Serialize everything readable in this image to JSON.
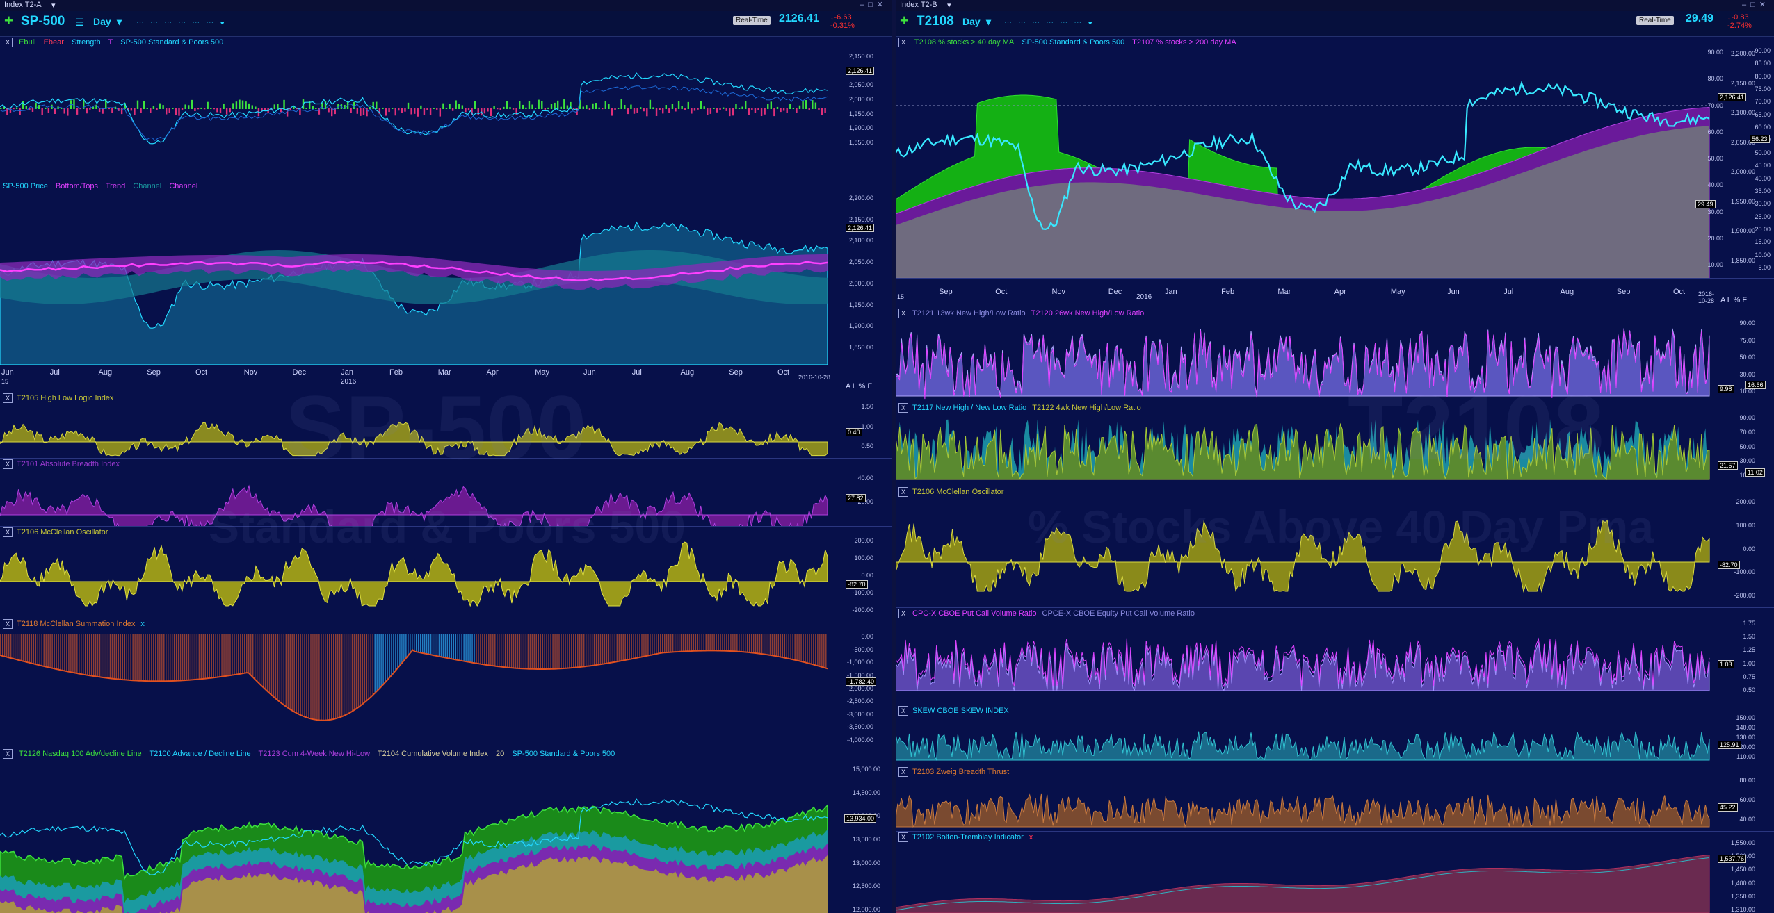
{
  "left": {
    "window_title": "Index T2-A",
    "symbol": "SP-500",
    "period": "Day",
    "realtime_label": "Real-Time",
    "price": "2126.41",
    "change": "-6.63",
    "change_pct": "-0.31%",
    "watermark_title": "SP-500",
    "watermark_sub": "Standard & Poors 500",
    "pane1": {
      "items": [
        "Ebull",
        "Ebear",
        "Strength",
        "T",
        "SP-500 Standard & Poors 500"
      ],
      "ticks": [
        "2,150.00",
        "2,100.00",
        "2,050.00",
        "2,000.00",
        "1,950.00",
        "1,900.00",
        "1,850.00"
      ],
      "last": "2,126.41"
    },
    "pane2": {
      "items": [
        "SP-500 Price",
        "Bottom/Tops",
        "Trend",
        "Channel",
        "Channel"
      ],
      "ticks": [
        "2,200.00",
        "2,150.00",
        "2,100.00",
        "2,050.00",
        "2,000.00",
        "1,950.00",
        "1,900.00",
        "1,850.00"
      ],
      "last": "2,126.41"
    },
    "dates": [
      "Jun",
      "Jul",
      "Aug",
      "Sep",
      "Oct",
      "Nov",
      "Dec",
      "Jan",
      "Feb",
      "Mar",
      "Apr",
      "May",
      "Jun",
      "Jul",
      "Aug",
      "Sep",
      "Oct"
    ],
    "date_year_start": "15",
    "date_year_mid": "2016",
    "date_end": "2016-10-28",
    "scale_controls": "A L % F",
    "pane3": {
      "items": [
        "T2105 High Low Logic Index"
      ],
      "ticks": [
        "1.50",
        "1.00",
        "0.50"
      ],
      "last": "0.40"
    },
    "pane4": {
      "items": [
        "T2101 Absolute Breadth Index"
      ],
      "ticks": [
        "40.00",
        "20.00"
      ],
      "last": "27.82"
    },
    "pane5": {
      "items": [
        "T2106 McClellan Oscillator"
      ],
      "ticks": [
        "200.00",
        "100.00",
        "0.00",
        "-100.00",
        "-200.00"
      ],
      "last": "-82.70"
    },
    "pane6": {
      "items": [
        "T2118 McClellan Summation Index",
        "x"
      ],
      "ticks": [
        "0.00",
        "-500.00",
        "-1,000.00",
        "-1,500.00",
        "-2,000.00",
        "-2,500.00",
        "-3,000.00",
        "-3,500.00",
        "-4,000.00"
      ],
      "last": "-1,782.40"
    },
    "pane7": {
      "items": [
        "T2126 Nasdaq 100 Adv/decline Line",
        "T2100 Advance / Decline Line",
        "T2123 Cum 4-Week New Hi-Low",
        "T2104 Cumulative Volume Index",
        "20",
        "SP-500 Standard & Poors 500"
      ],
      "ticks": [
        "15,000.00",
        "14,500.00",
        "14,000.00",
        "13,500.00",
        "13,000.00",
        "12,500.00",
        "12,000.00"
      ],
      "last": "13,934.00"
    }
  },
  "right": {
    "window_title": "Index T2-B",
    "symbol": "T2108",
    "period": "Day",
    "realtime_label": "Real-Time",
    "price": "29.49",
    "change": "-0.83",
    "change_pct": "-2.74%",
    "watermark_title": "T2108",
    "watermark_sub": "% Stocks Above 40 Day Pma",
    "pane1": {
      "items": [
        "T2108 % stocks > 40 day MA",
        "SP-500 Standard & Poors 500",
        "T2107 % stocks > 200 day MA"
      ],
      "ticks_a": [
        "90.00",
        "80.00",
        "70.00",
        "60.00",
        "50.00",
        "40.00",
        "30.00",
        "20.00",
        "10.00"
      ],
      "ticks_b": [
        "2,200.00",
        "2,150.00",
        "2,100.00",
        "2,050.00",
        "2,000.00",
        "1,950.00",
        "1,900.00",
        "1,850.00"
      ],
      "ticks_c": [
        "90.00",
        "85.00",
        "80.00",
        "75.00",
        "70.00",
        "65.00",
        "60.00",
        "55.00",
        "50.00",
        "45.00",
        "40.00",
        "35.00",
        "30.00",
        "25.00",
        "20.00",
        "15.00",
        "10.00",
        "5.00"
      ],
      "last_a": "29.49",
      "last_b": "2,126.41",
      "last_c": "56.23"
    },
    "dates": [
      "Sep",
      "Oct",
      "Nov",
      "Dec",
      "Jan",
      "Feb",
      "Mar",
      "Apr",
      "May",
      "Jun",
      "Jul",
      "Aug",
      "Sep",
      "Oct"
    ],
    "date_year_start": "15",
    "date_year_mid": "2016",
    "date_end": "2016-10-28",
    "scale_controls": "A L % F",
    "pane2": {
      "items": [
        "T2121 13wk New High/Low Ratio",
        "T2120 26wk New High/Low Ratio"
      ],
      "ticks": [
        "90.00",
        "75.00",
        "50.00",
        "30.00",
        "10.00"
      ],
      "last": "9.98",
      "last2": "16.66"
    },
    "pane3": {
      "items": [
        "T2117 New High / New Low Ratio",
        "T2122 4wk New High/Low Ratio"
      ],
      "ticks": [
        "90.00",
        "70.00",
        "50.00",
        "30.00",
        "10.00"
      ],
      "last": "21.57",
      "last2": "11.02"
    },
    "pane4": {
      "items": [
        "T2106 McClellan Oscillator"
      ],
      "ticks": [
        "200.00",
        "100.00",
        "0.00",
        "-100.00",
        "-200.00"
      ],
      "last": "-82.70"
    },
    "pane5": {
      "items": [
        "CPC-X CBOE Put Call Volume Ratio",
        "CPCE-X CBOE Equity Put Call Volume Ratio"
      ],
      "ticks": [
        "1.75",
        "1.50",
        "1.25",
        "1.00",
        "0.75",
        "0.50"
      ],
      "last": "1.03"
    },
    "pane6": {
      "items": [
        "SKEW CBOE SKEW INDEX"
      ],
      "ticks": [
        "150.00",
        "140.00",
        "130.00",
        "120.00",
        "110.00"
      ],
      "last": "125.91"
    },
    "pane7": {
      "items": [
        "T2103 Zweig Breadth Thrust"
      ],
      "ticks": [
        "80.00",
        "60.00",
        "40.00"
      ],
      "last": "45.22"
    },
    "pane8": {
      "items": [
        "T2102 Bolton-Tremblay Indicator",
        "x"
      ],
      "ticks": [
        "1,550.00",
        "1,500.00",
        "1,450.00",
        "1,400.00",
        "1,350.00",
        "1,310.00"
      ],
      "last": "1,537.76"
    }
  },
  "colors": {
    "bg": "#07104a",
    "cyan": "#23d8ff",
    "green": "#2fcf2f",
    "magenta": "#e040ff",
    "yellow": "#c8c838",
    "purple": "#8a2ab8",
    "teal": "#1a9aa0",
    "orange": "#c86a30",
    "olive": "#8a8a20"
  },
  "icons": [
    "plus-icon",
    "list-icon",
    "dropdown-icon",
    "close-icon",
    "minimize-icon",
    "maximize-icon"
  ]
}
